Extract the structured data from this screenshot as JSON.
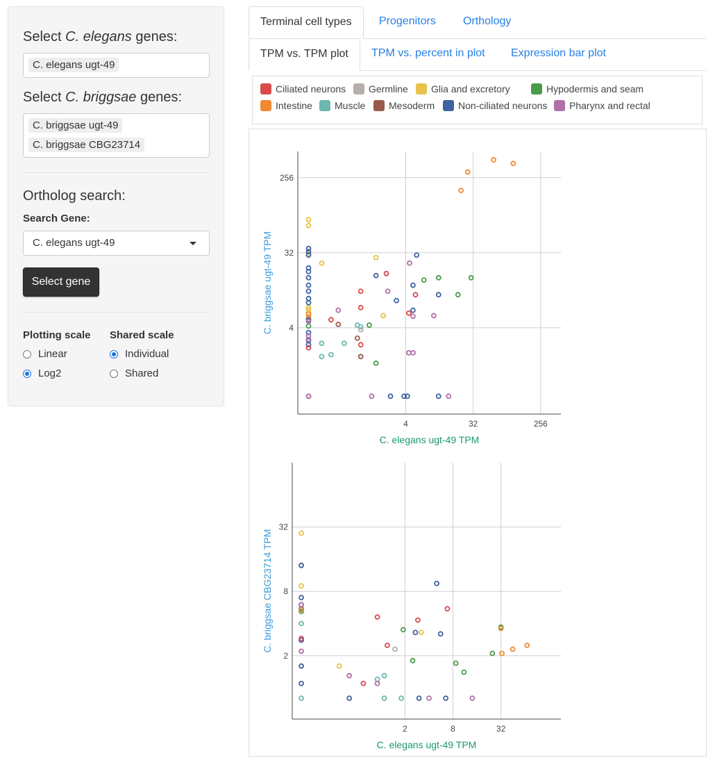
{
  "sidebar": {
    "elegans_label_pre": "Select ",
    "elegans_label_em": "C. elegans",
    "elegans_label_post": " genes:",
    "elegans_genes": [
      "C. elegans ugt-49"
    ],
    "briggsae_label_pre": "Select ",
    "briggsae_label_em": "C. briggsae",
    "briggsae_label_post": " genes:",
    "briggsae_genes": [
      "C. briggsae ugt-49",
      "C. briggsae CBG23714"
    ],
    "ortholog_title": "Ortholog search:",
    "search_gene_label": "Search Gene:",
    "search_gene_value": "C. elegans ugt-49",
    "select_button": "Select gene",
    "plotting_scale_label": "Plotting scale",
    "plotting_scale_options": [
      {
        "label": "Linear",
        "checked": false
      },
      {
        "label": "Log2",
        "checked": true
      }
    ],
    "shared_scale_label": "Shared scale",
    "shared_scale_options": [
      {
        "label": "Individual",
        "checked": true
      },
      {
        "label": "Shared",
        "checked": false
      }
    ]
  },
  "tabs_top": [
    "Terminal cell types",
    "Progenitors",
    "Orthology"
  ],
  "tabs_top_active": 0,
  "tabs_sub": [
    "TPM vs. TPM plot",
    "TPM vs. percent in plot",
    "Expression bar plot"
  ],
  "tabs_sub_active": 0,
  "legend": [
    {
      "name": "Ciliated neurons",
      "color": "#d94a4a"
    },
    {
      "name": "Germline",
      "color": "#b5aeaa"
    },
    {
      "name": "Glia and excretory",
      "color": "#e8c24a"
    },
    {
      "name": "Hypodermis and seam",
      "color": "#4a9a4a"
    },
    {
      "name": "Intestine",
      "color": "#f08a30"
    },
    {
      "name": "Muscle",
      "color": "#6ab8b0"
    },
    {
      "name": "Mesoderm",
      "color": "#9a5a4a"
    },
    {
      "name": "Non-ciliated neurons",
      "color": "#3f62a0"
    },
    {
      "name": "Pharynx and rectal",
      "color": "#b070a8"
    }
  ],
  "chart_data": [
    {
      "type": "scatter",
      "xlabel": "C. elegans ugt-49 TPM",
      "ylabel": "C. briggsae ugt-49 TPM",
      "scale": "log2",
      "x_ticks": [
        "4",
        "32",
        "256"
      ],
      "y_ticks": [
        "4",
        "32",
        "256"
      ],
      "grid": true,
      "series": [
        {
          "color": "#f08a30",
          "points": [
            [
              22,
              180
            ],
            [
              27,
              300
            ],
            [
              60,
              420
            ],
            [
              110,
              380
            ],
            [
              0.2,
              5.3
            ],
            [
              0.2,
              5.8
            ],
            [
              0.2,
              6.0
            ]
          ]
        },
        {
          "color": "#e8c24a",
          "points": [
            [
              0.2,
              80
            ],
            [
              0.2,
              68
            ],
            [
              0.2,
              31
            ],
            [
              0.3,
              24
            ],
            [
              1.6,
              28
            ],
            [
              2.0,
              5.6
            ],
            [
              0.2,
              6.6
            ],
            [
              0.2,
              7.0
            ]
          ]
        },
        {
          "color": "#3f62a0",
          "points": [
            [
              0.2,
              36
            ],
            [
              0.2,
              33
            ],
            [
              0.2,
              30
            ],
            [
              0.2,
              21
            ],
            [
              0.2,
              19
            ],
            [
              0.2,
              16
            ],
            [
              0.2,
              13
            ],
            [
              0.2,
              11
            ],
            [
              0.2,
              9
            ],
            [
              0.2,
              8
            ],
            [
              0.2,
              5
            ],
            [
              0.2,
              3.5
            ],
            [
              0.2,
              2.8
            ],
            [
              0.2,
              2.5
            ],
            [
              1.6,
              17
            ],
            [
              3.0,
              8.5
            ],
            [
              5.0,
              13
            ],
            [
              5.6,
              30
            ],
            [
              5.0,
              6.5
            ],
            [
              11,
              10
            ],
            [
              0.2,
              0.6
            ],
            [
              2.5,
              0.6
            ],
            [
              3.8,
              0.6
            ],
            [
              4.2,
              0.6
            ],
            [
              11,
              0.6
            ]
          ]
        },
        {
          "color": "#d94a4a",
          "points": [
            [
              0.4,
              5.0
            ],
            [
              2.2,
              18
            ],
            [
              1.0,
              11
            ],
            [
              1.0,
              2.5
            ],
            [
              5.4,
              10
            ],
            [
              4.4,
              6.0
            ],
            [
              1.0,
              7.0
            ],
            [
              0.2,
              2.3
            ]
          ]
        },
        {
          "color": "#4a9a4a",
          "points": [
            [
              7.0,
              15
            ],
            [
              11,
              16
            ],
            [
              20,
              10
            ],
            [
              30,
              16
            ],
            [
              1.3,
              4.3
            ],
            [
              1.6,
              1.5
            ],
            [
              0.2,
              4.2
            ]
          ]
        },
        {
          "color": "#6ab8b0",
          "points": [
            [
              0.3,
              2.6
            ],
            [
              0.6,
              2.6
            ],
            [
              0.3,
              1.8
            ],
            [
              0.4,
              1.9
            ],
            [
              0.9,
              4.3
            ],
            [
              1.0,
              4.1
            ],
            [
              1.0,
              1.8
            ]
          ]
        },
        {
          "color": "#9a5a4a",
          "points": [
            [
              0.9,
              3.0
            ],
            [
              1.0,
              1.8
            ],
            [
              0.5,
              4.4
            ]
          ]
        },
        {
          "color": "#b5aeaa",
          "points": [
            [
              1.0,
              3.8
            ]
          ]
        },
        {
          "color": "#b070a8",
          "points": [
            [
              0.5,
              6.5
            ],
            [
              0.2,
              4.8
            ],
            [
              2.3,
              11
            ],
            [
              4.4,
              2.0
            ],
            [
              5.0,
              2.0
            ],
            [
              5.0,
              5.5
            ],
            [
              9.5,
              5.6
            ],
            [
              4.5,
              24
            ],
            [
              0.2,
              2.9
            ],
            [
              0.2,
              3.2
            ],
            [
              0.2,
              0.6
            ],
            [
              1.4,
              0.6
            ],
            [
              15,
              0.6
            ]
          ]
        }
      ]
    },
    {
      "type": "scatter",
      "xlabel": "C. elegans ugt-49 TPM",
      "ylabel": "C. briggsae CBG23714 TPM",
      "scale": "log2",
      "x_ticks": [
        "2",
        "8",
        "32"
      ],
      "y_ticks": [
        "2",
        "8",
        "32"
      ],
      "grid": true,
      "series": [
        {
          "color": "#e8c24a",
          "points": [
            [
              0.1,
              28
            ],
            [
              0.1,
              14
            ],
            [
              0.1,
              9
            ],
            [
              0.3,
              1.6
            ],
            [
              3.2,
              3.3
            ]
          ]
        },
        {
          "color": "#3f62a0",
          "points": [
            [
              0.1,
              14
            ],
            [
              0.1,
              7
            ],
            [
              0.1,
              6
            ],
            [
              0.1,
              5.5
            ],
            [
              0.1,
              2.8
            ],
            [
              0.1,
              1.6
            ],
            [
              0.1,
              1.1
            ],
            [
              5.0,
              9.5
            ],
            [
              5.6,
              3.2
            ],
            [
              2.7,
              3.3
            ],
            [
              0.4,
              0.8
            ],
            [
              3.0,
              0.8
            ],
            [
              6.5,
              0.8
            ]
          ]
        },
        {
          "color": "#d94a4a",
          "points": [
            [
              0.1,
              2.9
            ],
            [
              0.9,
              4.6
            ],
            [
              1.2,
              2.5
            ],
            [
              2.9,
              4.3
            ],
            [
              6.8,
              5.5
            ],
            [
              0.6,
              1.1
            ]
          ]
        },
        {
          "color": "#4a9a4a",
          "points": [
            [
              0.1,
              5.2
            ],
            [
              1.9,
              3.5
            ],
            [
              2.5,
              1.8
            ],
            [
              8.7,
              1.7
            ],
            [
              11,
              1.4
            ],
            [
              25,
              2.1
            ],
            [
              32,
              3.7
            ]
          ]
        },
        {
          "color": "#f08a30",
          "points": [
            [
              0.1,
              5.4
            ],
            [
              32,
              3.6
            ],
            [
              33,
              2.1
            ],
            [
              45,
              2.3
            ],
            [
              68,
              2.5
            ]
          ]
        },
        {
          "color": "#6ab8b0",
          "points": [
            [
              0.1,
              4.0
            ],
            [
              1.1,
              1.3
            ],
            [
              0.9,
              1.2
            ],
            [
              0.1,
              0.8
            ],
            [
              1.1,
              0.8
            ],
            [
              1.8,
              0.8
            ]
          ]
        },
        {
          "color": "#b070a8",
          "points": [
            [
              0.1,
              6.0
            ],
            [
              0.1,
              2.2
            ],
            [
              0.4,
              1.3
            ],
            [
              0.9,
              1.1
            ],
            [
              14,
              0.8
            ],
            [
              4.0,
              0.8
            ]
          ]
        },
        {
          "color": "#b5aeaa",
          "points": [
            [
              1.5,
              2.3
            ]
          ]
        }
      ]
    }
  ]
}
